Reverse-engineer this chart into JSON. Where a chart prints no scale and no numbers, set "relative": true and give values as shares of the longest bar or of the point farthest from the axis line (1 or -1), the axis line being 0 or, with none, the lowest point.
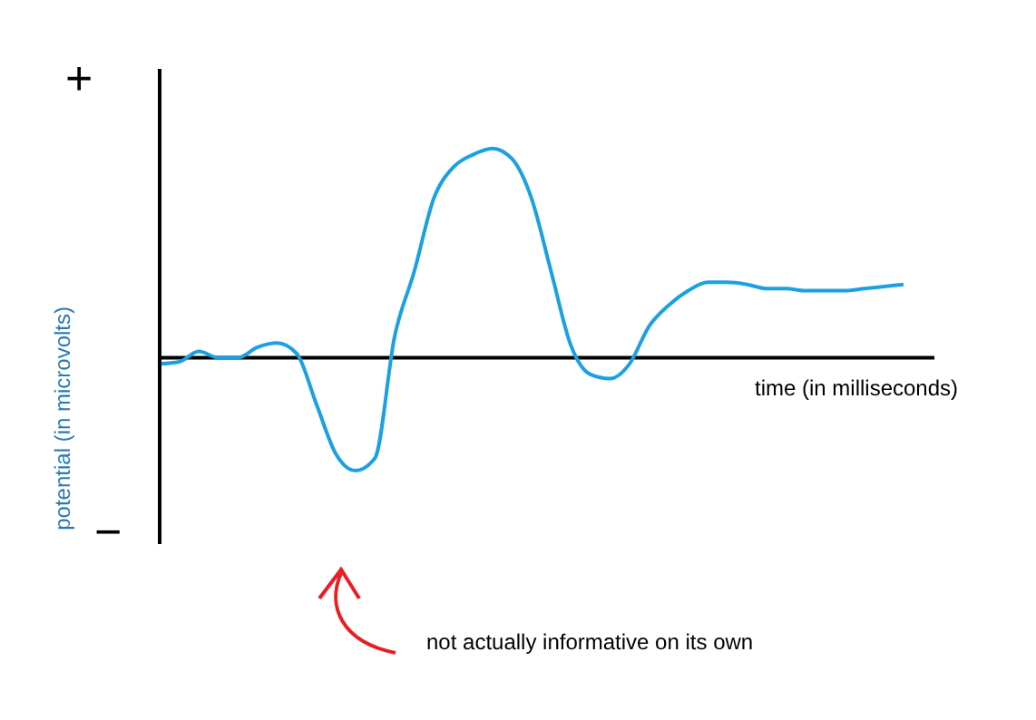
{
  "chart_data": {
    "type": "line",
    "relative": true,
    "ylabel": "potential (in microvolts)",
    "xlabel": "time (in milliseconds)",
    "annotations": [
      "+",
      "−",
      "not actually informative on its own"
    ],
    "categories": [
      null,
      null,
      null,
      null,
      null,
      null,
      null,
      null,
      null,
      null,
      null,
      null,
      null,
      null,
      null,
      null,
      null,
      null,
      null,
      null,
      null,
      null,
      null,
      null,
      null,
      null,
      null,
      null,
      null,
      null,
      null,
      null,
      null,
      null,
      null,
      null,
      null,
      null,
      null
    ],
    "series": [
      {
        "color": "#1ba1e2",
        "values": [
          -0.03,
          -0.02,
          0.03,
          0,
          0,
          0.05,
          0.07,
          0.02,
          -0.22,
          -0.46,
          -0.54,
          -0.48,
          0.1,
          0.41,
          0.76,
          0.91,
          0.97,
          1,
          0.95,
          0.76,
          0.41,
          0.06,
          -0.08,
          -0.1,
          -0.03,
          0.15,
          0.25,
          0.32,
          0.36,
          0.36,
          0.35,
          0.33,
          0.33,
          0.32,
          0.32,
          0.32,
          0.33,
          0.34,
          0.35
        ]
      }
    ],
    "ref_lines": [
      {
        "axis": "y",
        "value": 0,
        "color": "#000000"
      }
    ],
    "grid": false,
    "legend": false,
    "marker": "none",
    "line_style": "solid"
  }
}
